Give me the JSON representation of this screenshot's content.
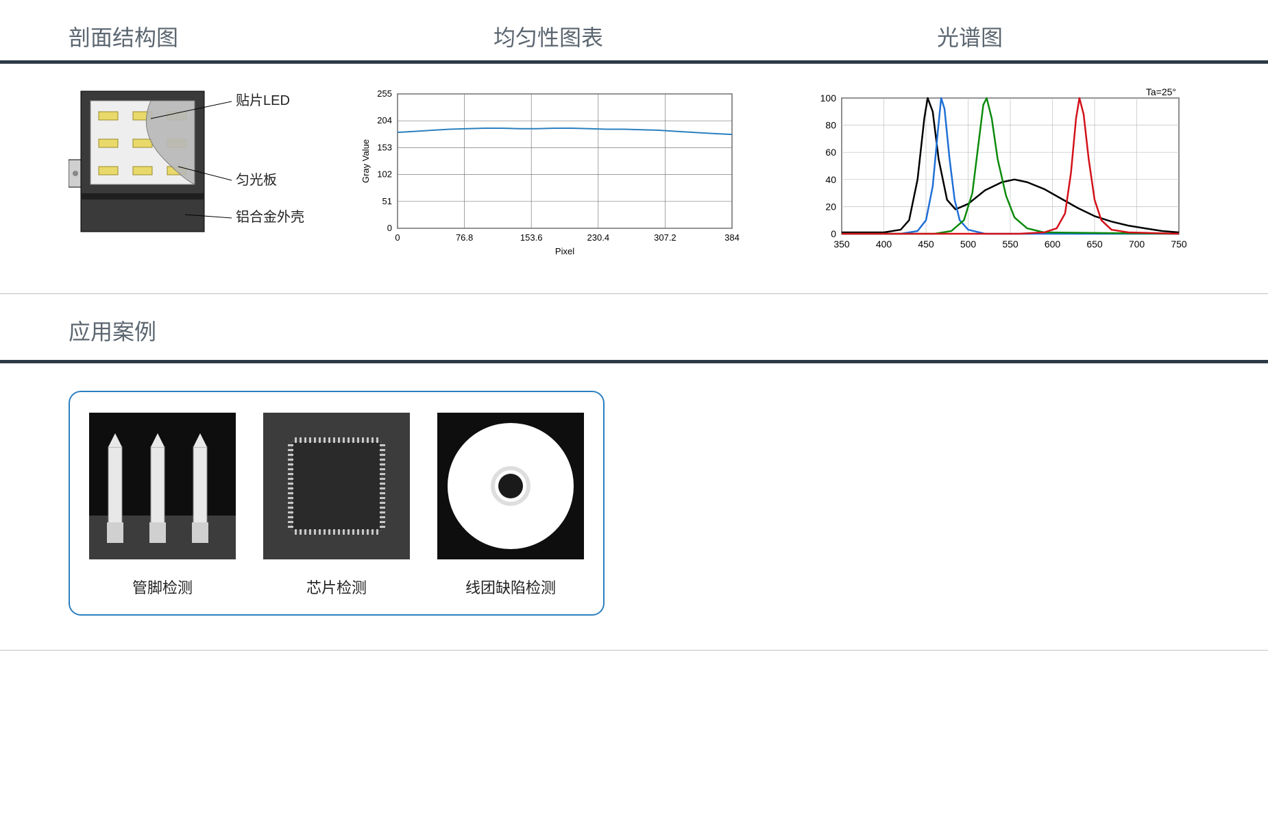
{
  "titles": {
    "cross_section": "剖面结构图",
    "uniformity": "均匀性图表",
    "spectrum": "光谱图",
    "applications": "应用案例"
  },
  "cross_section": {
    "labels": {
      "led": "贴片LED",
      "diffuser": "匀光板",
      "housing": "铝合金外壳"
    },
    "colors": {
      "housing": "#3a3a3a",
      "pcb": "#eeeeee",
      "led_body": "#e8d96a",
      "led_edge": "#9a8a2a",
      "diffuser": "#b9b9b9",
      "outline": "#000000"
    }
  },
  "uniformity_chart": {
    "type": "line",
    "title": "",
    "xlabel": "Pixel",
    "ylabel": "Gray Value",
    "xlim": [
      0,
      384
    ],
    "ylim": [
      0,
      255
    ],
    "xticks": [
      0,
      76.8,
      153.6,
      230.4,
      307.2,
      384
    ],
    "yticks": [
      0,
      51,
      102,
      153,
      204,
      255
    ],
    "grid_color": "#7a7a7a",
    "axis_color": "#000000",
    "line_color": "#2a7fbf",
    "line_width": 2,
    "background_color": "#ffffff",
    "label_fontsize": 13,
    "tick_fontsize": 13,
    "data": [
      [
        0,
        182
      ],
      [
        20,
        184
      ],
      [
        40,
        186
      ],
      [
        60,
        188
      ],
      [
        80,
        189
      ],
      [
        100,
        190
      ],
      [
        120,
        190
      ],
      [
        140,
        189
      ],
      [
        160,
        189
      ],
      [
        180,
        190
      ],
      [
        200,
        190
      ],
      [
        220,
        189
      ],
      [
        240,
        188
      ],
      [
        260,
        188
      ],
      [
        280,
        187
      ],
      [
        300,
        186
      ],
      [
        320,
        184
      ],
      [
        340,
        182
      ],
      [
        360,
        180
      ],
      [
        384,
        178
      ]
    ]
  },
  "spectrum_chart": {
    "type": "line",
    "annotation": "Ta=25°",
    "xlim": [
      350,
      750
    ],
    "ylim": [
      0,
      100
    ],
    "xticks": [
      350,
      400,
      450,
      500,
      550,
      600,
      650,
      700,
      750
    ],
    "yticks": [
      0,
      20,
      40,
      60,
      80,
      100
    ],
    "grid_color": "#bfbfbf",
    "axis_color": "#000000",
    "label_fontsize": 14,
    "annotation_fontsize": 14,
    "line_width": 2.5,
    "background_color": "#ffffff",
    "series": [
      {
        "name": "black",
        "color": "#000000",
        "data": [
          [
            350,
            1
          ],
          [
            400,
            1
          ],
          [
            420,
            3
          ],
          [
            430,
            10
          ],
          [
            440,
            40
          ],
          [
            448,
            85
          ],
          [
            452,
            100
          ],
          [
            458,
            90
          ],
          [
            465,
            55
          ],
          [
            475,
            25
          ],
          [
            485,
            18
          ],
          [
            500,
            22
          ],
          [
            520,
            32
          ],
          [
            540,
            38
          ],
          [
            555,
            40
          ],
          [
            570,
            38
          ],
          [
            590,
            33
          ],
          [
            610,
            26
          ],
          [
            630,
            19
          ],
          [
            650,
            13
          ],
          [
            670,
            9
          ],
          [
            690,
            6
          ],
          [
            710,
            4
          ],
          [
            730,
            2
          ],
          [
            750,
            1
          ]
        ]
      },
      {
        "name": "blue",
        "color": "#1f6fd6",
        "data": [
          [
            350,
            0
          ],
          [
            420,
            0
          ],
          [
            440,
            2
          ],
          [
            450,
            10
          ],
          [
            458,
            35
          ],
          [
            464,
            75
          ],
          [
            468,
            100
          ],
          [
            472,
            92
          ],
          [
            478,
            55
          ],
          [
            484,
            25
          ],
          [
            490,
            10
          ],
          [
            500,
            3
          ],
          [
            520,
            0
          ],
          [
            750,
            0
          ]
        ]
      },
      {
        "name": "green",
        "color": "#0b8a0b",
        "data": [
          [
            350,
            0
          ],
          [
            460,
            0
          ],
          [
            480,
            2
          ],
          [
            495,
            10
          ],
          [
            505,
            30
          ],
          [
            512,
            65
          ],
          [
            518,
            95
          ],
          [
            522,
            100
          ],
          [
            528,
            85
          ],
          [
            535,
            55
          ],
          [
            545,
            28
          ],
          [
            555,
            12
          ],
          [
            570,
            4
          ],
          [
            590,
            1
          ],
          [
            750,
            0
          ]
        ]
      },
      {
        "name": "red",
        "color": "#d31018",
        "data": [
          [
            350,
            0
          ],
          [
            560,
            0
          ],
          [
            590,
            1
          ],
          [
            605,
            4
          ],
          [
            615,
            15
          ],
          [
            622,
            45
          ],
          [
            628,
            85
          ],
          [
            632,
            100
          ],
          [
            637,
            88
          ],
          [
            643,
            55
          ],
          [
            650,
            25
          ],
          [
            658,
            10
          ],
          [
            670,
            3
          ],
          [
            690,
            1
          ],
          [
            750,
            0
          ]
        ]
      }
    ]
  },
  "applications": {
    "items": [
      {
        "id": "pins",
        "label": "管脚检测"
      },
      {
        "id": "chip",
        "label": "芯片检测"
      },
      {
        "id": "coil",
        "label": "线团缺陷检测"
      }
    ],
    "thumb_colors": {
      "bg": "#0e0e0e",
      "mid": "#3c3c3c",
      "light": "#e8e8e8",
      "white": "#ffffff",
      "gray": "#2a2a2a"
    }
  }
}
